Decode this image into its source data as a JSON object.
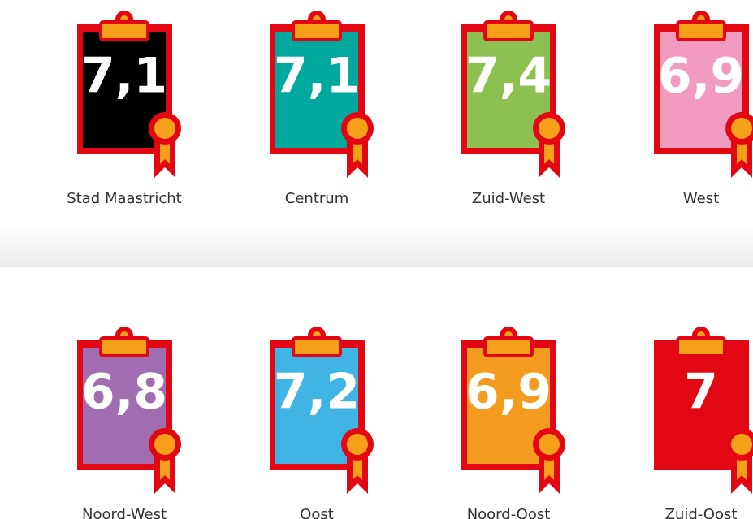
{
  "items": [
    {
      "score": "7,1",
      "label": "Stad Maastricht",
      "color": "#000000"
    },
    {
      "score": "7,1",
      "label": "Centrum",
      "color": "#00a99d"
    },
    {
      "score": "7,4",
      "label": "Zuid-West",
      "color": "#8cc152"
    },
    {
      "score": "6,9",
      "label": "West",
      "color": "#f29bc1"
    },
    {
      "score": "6,8",
      "label": "Noord-West",
      "color": "#a06eb0"
    },
    {
      "score": "7,2",
      "label": "Oost",
      "color": "#3fb4e5"
    },
    {
      "score": "6,9",
      "label": "Noord-Oost",
      "color": "#f39c1f"
    },
    {
      "score": "7",
      "label": "Zuid-Oost",
      "color": "#e30613"
    }
  ]
}
